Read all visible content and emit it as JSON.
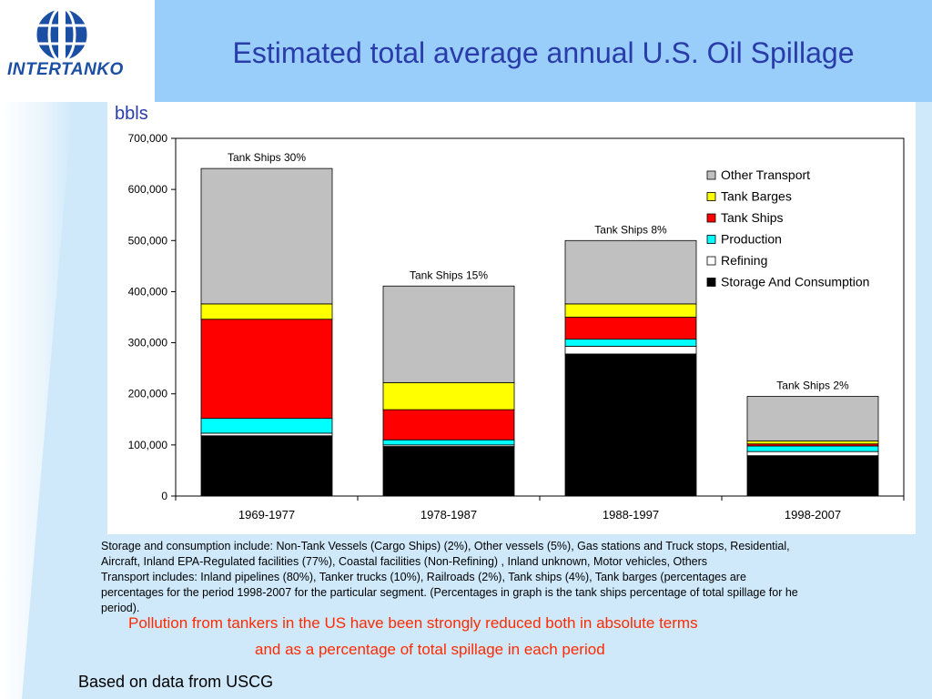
{
  "header": {
    "logo_text": "INTERTANKO",
    "title": "Estimated total average annual U.S. Oil Spillage"
  },
  "colors": {
    "header_band": "#99cdfa",
    "title": "#2a3caa",
    "note": "#ff2a00",
    "storage": "#000000",
    "refining": "#ffffff",
    "production": "#00ffff",
    "tank_ships": "#ff0000",
    "tank_barges": "#ffff00",
    "other_transport": "#c0c0c0"
  },
  "chart_data": {
    "type": "bar",
    "stacked": true,
    "ylabel": "bbls",
    "ylim": [
      0,
      700000
    ],
    "yticks": [
      "0",
      "100,000",
      "200,000",
      "300,000",
      "400,000",
      "500,000",
      "600,000",
      "700,000"
    ],
    "categories": [
      "1969-1977",
      "1978-1987",
      "1988-1997",
      "1998-2007"
    ],
    "bar_labels": [
      "Tank Ships 30%",
      "Tank Ships 15%",
      "Tank Ships 8%",
      "Tank Ships 2%"
    ],
    "series": [
      {
        "name": "Storage And Consumption",
        "color": "#000000",
        "values": [
          118000,
          97000,
          278000,
          79000
        ]
      },
      {
        "name": "Refining",
        "color": "#ffffff",
        "values": [
          5000,
          3000,
          15000,
          8000
        ]
      },
      {
        "name": "Production",
        "color": "#00ffff",
        "values": [
          29000,
          10000,
          14000,
          11000
        ]
      },
      {
        "name": "Tank Ships",
        "color": "#ff0000",
        "values": [
          194000,
          59000,
          43000,
          4000
        ]
      },
      {
        "name": "Tank Barges",
        "color": "#ffff00",
        "values": [
          30000,
          53000,
          26000,
          6000
        ]
      },
      {
        "name": "Other Transport",
        "color": "#c0c0c0",
        "values": [
          265000,
          189000,
          124000,
          87000
        ]
      }
    ],
    "legend_order": [
      "Other Transport",
      "Tank Barges",
      "Tank Ships",
      "Production",
      "Refining",
      "Storage And Consumption"
    ],
    "legend_placement": "top-right",
    "grid": false
  },
  "footnote": {
    "line1": "Storage and consumption include: Non-Tank Vessels (Cargo Ships) (2%), Other vessels (5%), Gas stations and Truck stops, Residential,",
    "line2": "Aircraft, Inland EPA-Regulated facilities (77%), Coastal facilities (Non-Refining) , Inland unknown, Motor vehicles, Others",
    "line3": "Transport includes: Inland pipelines (80%), Tanker trucks (10%), Railroads (2%), Tank ships (4%), Tank barges (percentages are",
    "line4": "percentages for the period 1998-2007 for the particular segment. (Percentages in graph is the tank ships percentage of total spillage for he",
    "line5": "period)."
  },
  "conclusion": {
    "line1": "Pollution from tankers in the US have been strongly reduced both in absolute terms",
    "line2": "and as a percentage of total spillage in each period"
  },
  "source": "Based on data from USCG"
}
